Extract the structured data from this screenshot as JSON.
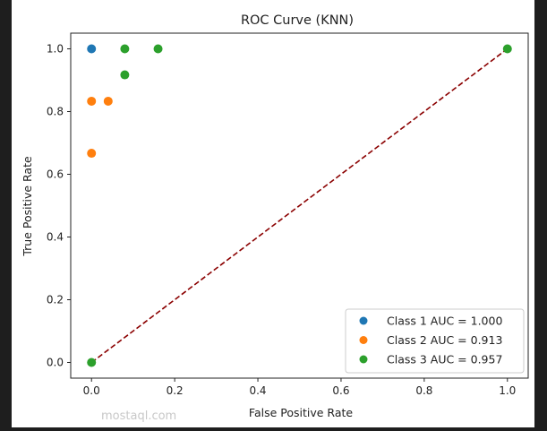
{
  "chart_data": {
    "type": "scatter",
    "title": "ROC Curve (KNN)",
    "xlabel": "False Positive Rate",
    "ylabel": "True Positive Rate",
    "xlim": [
      -0.05,
      1.05
    ],
    "ylim": [
      -0.05,
      1.05
    ],
    "xticks": [
      "0.0",
      "0.2",
      "0.4",
      "0.6",
      "0.8",
      "1.0"
    ],
    "yticks": [
      "0.0",
      "0.2",
      "0.4",
      "0.6",
      "0.8",
      "1.0"
    ],
    "grid": false,
    "legend_position": "lower-right",
    "series": [
      {
        "name": "Class 1 AUC = 1.000",
        "color": "#1f77b4",
        "points": [
          [
            0,
            1.0
          ]
        ]
      },
      {
        "name": "Class 2 AUC = 0.913",
        "color": "#ff7f0e",
        "points": [
          [
            0,
            0.833
          ],
          [
            0,
            0.667
          ],
          [
            0.04,
            0.833
          ]
        ]
      },
      {
        "name": "Class 3 AUC = 0.957",
        "color": "#2ca02c",
        "points": [
          [
            0,
            0
          ],
          [
            0.08,
            0.917
          ],
          [
            0.08,
            1.0
          ],
          [
            0.16,
            1.0
          ],
          [
            1,
            1
          ]
        ]
      }
    ],
    "reference_line": {
      "points": [
        [
          0,
          0
        ],
        [
          1,
          1
        ]
      ],
      "style": "dashed",
      "color": "#8b0000"
    }
  },
  "watermark": "mostaql.com"
}
